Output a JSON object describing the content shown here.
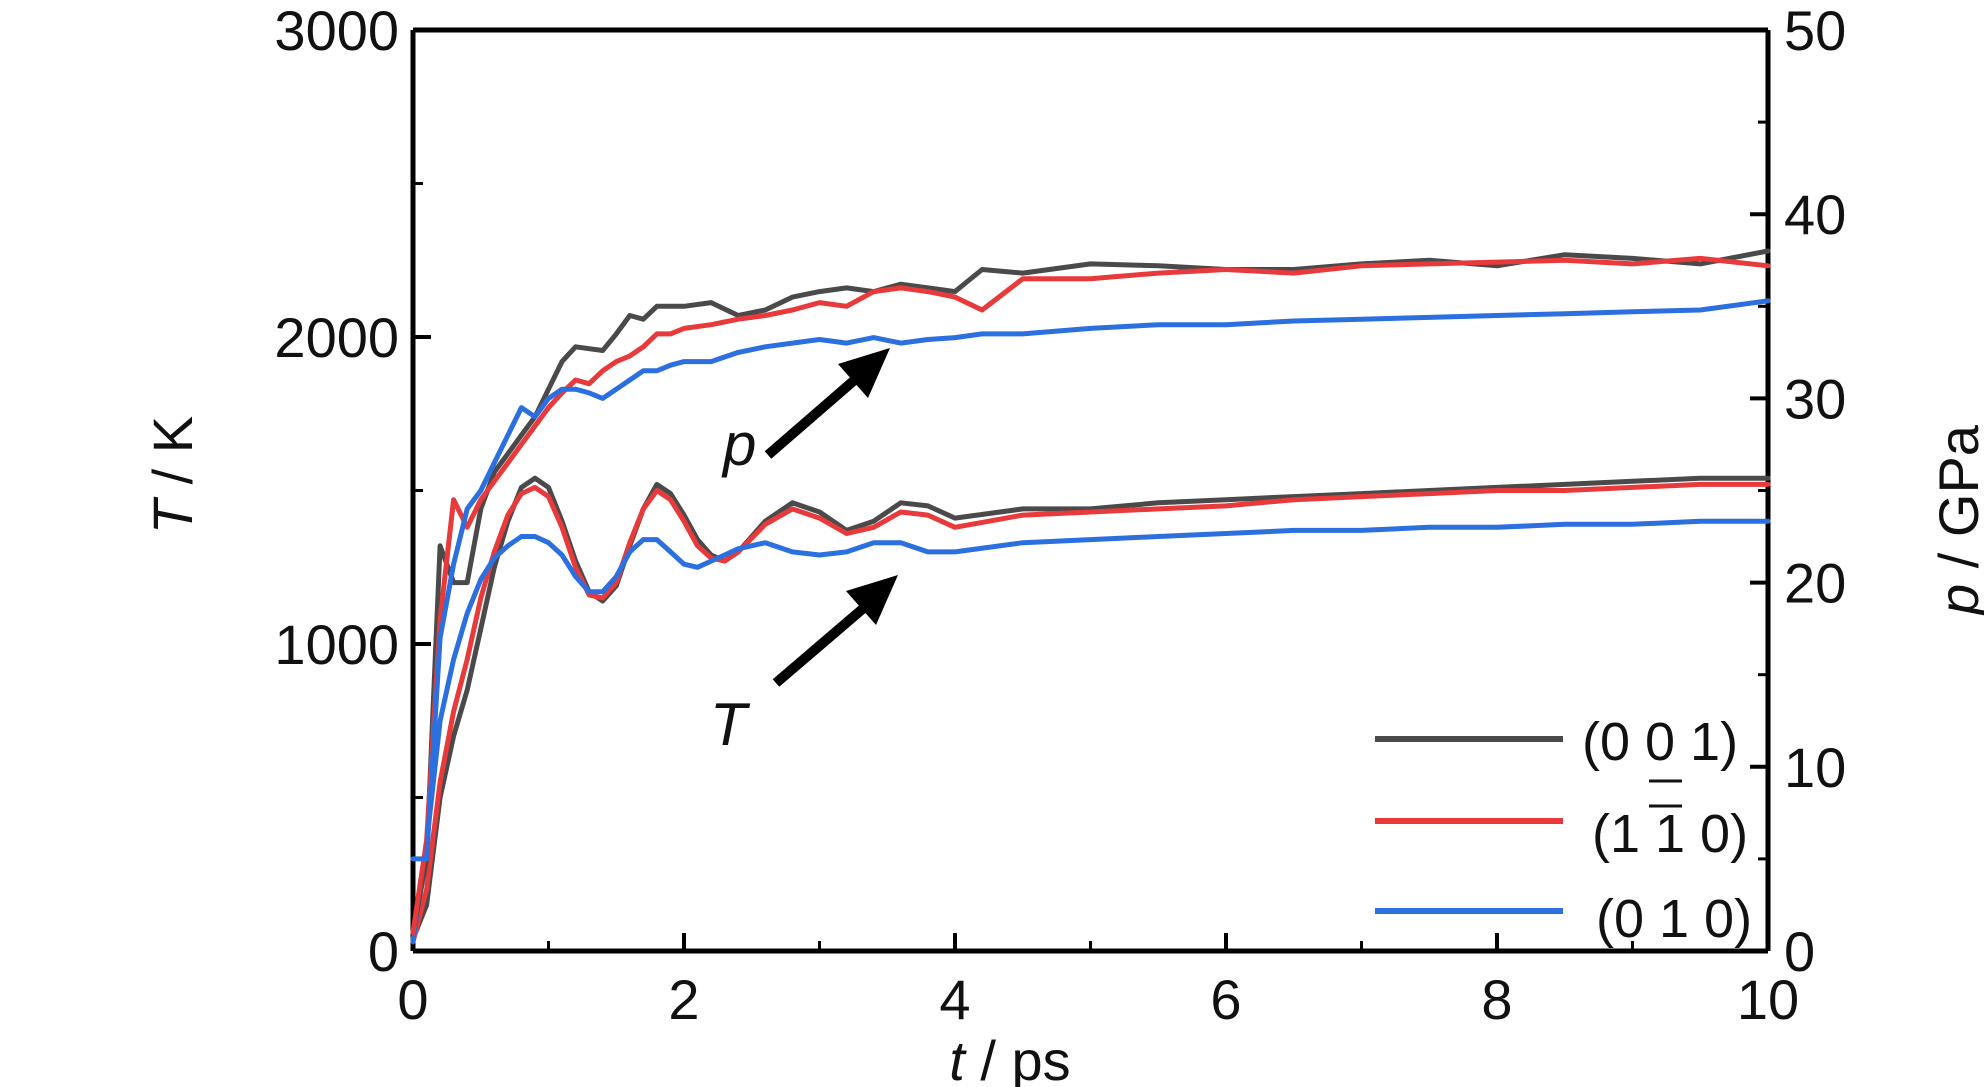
{
  "chart_data": {
    "type": "line",
    "xlabel": "t / ps",
    "ylabel_left": "T / K",
    "ylabel_right": "p / GPa",
    "xlim": [
      0,
      10
    ],
    "ylim_left": [
      0,
      3000
    ],
    "ylim_right": [
      0,
      50
    ],
    "x_ticks": [
      "0",
      "2",
      "4",
      "6",
      "8",
      "10"
    ],
    "y_left_ticks": [
      "0",
      "1000",
      "2000",
      "3000"
    ],
    "y_right_ticks": [
      "0",
      "10",
      "20",
      "30",
      "40",
      "50"
    ],
    "grid": false,
    "legend_position": "bottom-right",
    "legend": [
      {
        "label": "(0 0 1)",
        "color": "#4a4a4a"
      },
      {
        "label": "(1 1 0)",
        "color": "#e8393b"
      },
      {
        "label": "(0 1 0)",
        "color": "#2c6fde"
      }
    ],
    "annotations": [
      {
        "text": "p",
        "target": "pressure curves",
        "arrow": true
      },
      {
        "text": "T",
        "target": "temperature curves",
        "arrow": true
      }
    ],
    "series": [
      {
        "name": "(0 0 1)",
        "quantity": "T",
        "axis": "left",
        "color": "#4a4a4a",
        "x": [
          0,
          0.1,
          0.2,
          0.3,
          0.4,
          0.5,
          0.6,
          0.7,
          0.8,
          0.9,
          1.0,
          1.1,
          1.2,
          1.3,
          1.4,
          1.5,
          1.6,
          1.7,
          1.8,
          1.9,
          2.0,
          2.1,
          2.2,
          2.3,
          2.4,
          2.6,
          2.8,
          3.0,
          3.2,
          3.4,
          3.6,
          3.8,
          4.0,
          4.5,
          5.0,
          5.5,
          6.0,
          6.5,
          7.0,
          7.5,
          8.0,
          8.5,
          9.0,
          9.5,
          10.0
        ],
        "y": [
          40,
          150,
          500,
          700,
          850,
          1050,
          1250,
          1400,
          1510,
          1540,
          1510,
          1400,
          1270,
          1170,
          1140,
          1190,
          1320,
          1440,
          1520,
          1490,
          1420,
          1340,
          1290,
          1270,
          1300,
          1400,
          1460,
          1430,
          1370,
          1400,
          1460,
          1450,
          1410,
          1440,
          1440,
          1460,
          1470,
          1480,
          1490,
          1500,
          1510,
          1520,
          1530,
          1540,
          1540
        ]
      },
      {
        "name": "(1 1 0)",
        "quantity": "T",
        "axis": "left",
        "color": "#e8393b",
        "x": [
          0,
          0.1,
          0.2,
          0.3,
          0.4,
          0.5,
          0.6,
          0.7,
          0.8,
          0.9,
          1.0,
          1.1,
          1.2,
          1.3,
          1.4,
          1.5,
          1.6,
          1.7,
          1.8,
          1.9,
          2.0,
          2.1,
          2.2,
          2.3,
          2.4,
          2.6,
          2.8,
          3.0,
          3.2,
          3.4,
          3.6,
          3.8,
          4.0,
          4.5,
          5.0,
          5.5,
          6.0,
          6.5,
          7.0,
          7.5,
          8.0,
          8.5,
          9.0,
          9.5,
          10.0
        ],
        "y": [
          30,
          200,
          550,
          780,
          950,
          1150,
          1300,
          1420,
          1490,
          1510,
          1480,
          1380,
          1250,
          1160,
          1150,
          1200,
          1330,
          1440,
          1500,
          1470,
          1400,
          1320,
          1280,
          1270,
          1300,
          1390,
          1440,
          1410,
          1360,
          1380,
          1430,
          1420,
          1380,
          1420,
          1430,
          1440,
          1450,
          1470,
          1480,
          1490,
          1500,
          1500,
          1510,
          1520,
          1520
        ]
      },
      {
        "name": "(0 1 0)",
        "quantity": "T",
        "axis": "left",
        "color": "#2c6fde",
        "x": [
          0,
          0.1,
          0.2,
          0.3,
          0.4,
          0.5,
          0.6,
          0.7,
          0.8,
          0.9,
          1.0,
          1.1,
          1.2,
          1.3,
          1.4,
          1.5,
          1.6,
          1.7,
          1.8,
          1.9,
          2.0,
          2.1,
          2.2,
          2.3,
          2.4,
          2.6,
          2.8,
          3.0,
          3.2,
          3.4,
          3.6,
          3.8,
          4.0,
          4.5,
          5.0,
          5.5,
          6.0,
          6.5,
          7.0,
          7.5,
          8.0,
          8.5,
          9.0,
          9.5,
          10.0
        ],
        "y": [
          30,
          350,
          750,
          950,
          1100,
          1210,
          1280,
          1320,
          1350,
          1350,
          1330,
          1290,
          1220,
          1170,
          1170,
          1220,
          1300,
          1340,
          1340,
          1300,
          1260,
          1250,
          1270,
          1290,
          1310,
          1330,
          1300,
          1290,
          1300,
          1330,
          1330,
          1300,
          1300,
          1330,
          1340,
          1350,
          1360,
          1370,
          1370,
          1380,
          1380,
          1390,
          1390,
          1400,
          1400
        ]
      },
      {
        "name": "(0 0 1)",
        "quantity": "p",
        "axis": "right",
        "color": "#4a4a4a",
        "x": [
          0,
          0.1,
          0.2,
          0.3,
          0.4,
          0.5,
          0.6,
          0.7,
          0.8,
          0.9,
          1.0,
          1.1,
          1.2,
          1.3,
          1.4,
          1.5,
          1.6,
          1.7,
          1.8,
          1.9,
          2.0,
          2.2,
          2.4,
          2.6,
          2.8,
          3.0,
          3.2,
          3.4,
          3.6,
          3.8,
          4.0,
          4.2,
          4.5,
          5.0,
          5.5,
          6.0,
          6.5,
          7.0,
          7.5,
          8.0,
          8.5,
          9.0,
          9.5,
          10.0
        ],
        "y": [
          1,
          5,
          22,
          20,
          20,
          24,
          26,
          27,
          28,
          29,
          30.5,
          32,
          32.8,
          32.7,
          32.6,
          33.5,
          34.5,
          34.3,
          35,
          35,
          35,
          35.2,
          34.5,
          34.8,
          35.5,
          35.8,
          36,
          35.8,
          36.2,
          36,
          35.8,
          37,
          36.8,
          37.3,
          37.2,
          37,
          37,
          37.3,
          37.5,
          37.2,
          37.8,
          37.6,
          37.3,
          38
        ]
      },
      {
        "name": "(1 1 0)",
        "quantity": "p",
        "axis": "right",
        "color": "#e8393b",
        "x": [
          0,
          0.1,
          0.2,
          0.3,
          0.4,
          0.5,
          0.6,
          0.7,
          0.8,
          0.9,
          1.0,
          1.1,
          1.2,
          1.3,
          1.4,
          1.5,
          1.6,
          1.7,
          1.8,
          1.9,
          2.0,
          2.2,
          2.4,
          2.6,
          2.8,
          3.0,
          3.2,
          3.4,
          3.6,
          3.8,
          4.0,
          4.2,
          4.5,
          5.0,
          5.5,
          6.0,
          6.5,
          7.0,
          7.5,
          8.0,
          8.5,
          9.0,
          9.5,
          10.0
        ],
        "y": [
          1,
          6,
          18,
          24.5,
          23,
          24.5,
          25.5,
          26.5,
          27.5,
          28.5,
          29.5,
          30.3,
          31,
          30.8,
          31.5,
          32,
          32.3,
          32.8,
          33.5,
          33.5,
          33.8,
          34,
          34.3,
          34.5,
          34.8,
          35.2,
          35,
          35.8,
          36,
          35.8,
          35.5,
          34.8,
          36.5,
          36.5,
          36.8,
          37,
          36.8,
          37.2,
          37.3,
          37.4,
          37.5,
          37.3,
          37.6,
          37.2
        ]
      },
      {
        "name": "(0 1 0)",
        "quantity": "p",
        "axis": "right",
        "color": "#2c6fde",
        "x": [
          0,
          0.1,
          0.2,
          0.3,
          0.4,
          0.5,
          0.6,
          0.7,
          0.8,
          0.9,
          1.0,
          1.1,
          1.2,
          1.3,
          1.4,
          1.5,
          1.6,
          1.7,
          1.8,
          1.9,
          2.0,
          2.2,
          2.4,
          2.6,
          2.8,
          3.0,
          3.2,
          3.4,
          3.6,
          3.8,
          4.0,
          4.2,
          4.5,
          5.0,
          5.5,
          6.0,
          6.5,
          7.0,
          7.5,
          8.0,
          8.5,
          9.0,
          9.5,
          10.0
        ],
        "y": [
          5,
          5,
          17,
          21,
          24,
          25,
          26.5,
          28,
          29.5,
          29,
          30,
          30.5,
          30.5,
          30.3,
          30,
          30.5,
          31,
          31.5,
          31.5,
          31.8,
          32,
          32,
          32.5,
          32.8,
          33,
          33.2,
          33,
          33.3,
          33,
          33.2,
          33.3,
          33.5,
          33.5,
          33.8,
          34,
          34,
          34.2,
          34.3,
          34.4,
          34.5,
          34.6,
          34.7,
          34.8,
          35.3
        ]
      }
    ]
  }
}
